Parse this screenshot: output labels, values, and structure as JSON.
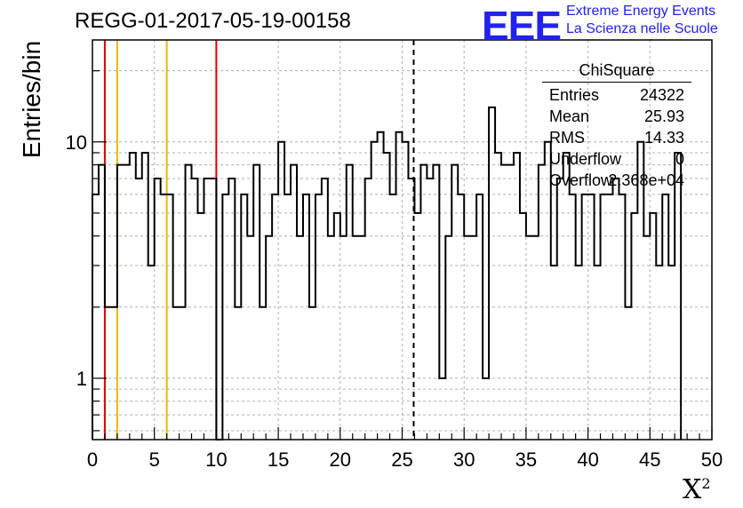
{
  "header": {
    "title": "REGG-01-2017-05-19-00158",
    "logo_text": "EEE",
    "logo_line1": "Extreme Energy Events",
    "logo_line2": "La Scienza nelle Scuole"
  },
  "stats_box": {
    "title": "ChiSquare",
    "rows": [
      {
        "key": "Entries",
        "value": "24322"
      },
      {
        "key": "Mean",
        "value": "25.93"
      },
      {
        "key": "RMS",
        "value": "14.33"
      },
      {
        "key": "Underflow",
        "value": "0"
      },
      {
        "key": "Overflow",
        "value": "2.368e+04"
      }
    ]
  },
  "colors": {
    "histogram": "#000000",
    "red_marker": "#dd0000",
    "orange_marker": "#f0b800",
    "grid": "#b0b0b0",
    "logo": "#2222ee"
  },
  "chart_data": {
    "type": "histogram",
    "title": "REGG-01-2017-05-19-00158",
    "xlabel": "X²",
    "ylabel": "Entries/bin",
    "xlim": [
      0,
      50
    ],
    "ylim": [
      0.55,
      27
    ],
    "y_scale": "log",
    "grid": true,
    "bin_width": 0.5,
    "x_ticks": [
      0,
      5,
      10,
      15,
      20,
      25,
      30,
      35,
      40,
      45,
      50
    ],
    "y_ticks": [
      1,
      10
    ],
    "values": [
      6,
      8,
      2,
      2,
      8,
      8,
      9,
      7,
      9,
      3,
      7,
      6,
      6,
      2,
      2,
      8,
      7,
      5,
      7,
      7,
      0,
      6,
      7,
      2,
      6,
      4,
      8,
      2,
      4,
      6,
      10,
      6,
      8,
      4,
      6,
      2,
      6,
      7,
      4,
      5,
      4,
      8,
      4,
      4,
      7,
      10,
      11,
      9,
      6,
      11,
      10,
      7,
      5,
      8,
      7,
      8,
      1,
      4,
      8,
      6,
      4,
      4,
      6,
      1,
      14,
      9,
      8,
      8,
      9,
      5,
      4,
      4,
      8,
      10,
      3,
      7,
      9,
      6,
      3,
      6,
      6,
      3,
      6,
      6,
      7,
      6,
      2,
      5,
      10,
      4,
      5,
      3,
      6,
      3,
      9
    ],
    "markers": [
      {
        "x": 1.0,
        "color": "red",
        "style": "solid"
      },
      {
        "x": 2.0,
        "color": "orange",
        "style": "solid"
      },
      {
        "x": 6.0,
        "color": "orange",
        "style": "solid"
      },
      {
        "x": 10.0,
        "color": "red",
        "style": "solid"
      },
      {
        "x": 25.93,
        "color": "black",
        "style": "dashed"
      }
    ]
  }
}
